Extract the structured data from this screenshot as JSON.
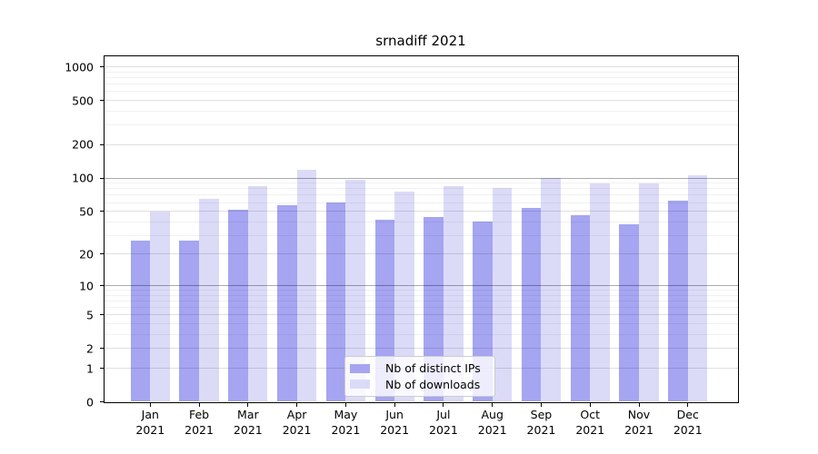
{
  "title": "srnadiff 2021",
  "chart_data": {
    "type": "bar",
    "title": "srnadiff 2021",
    "categories": [
      "Jan",
      "Feb",
      "Mar",
      "Apr",
      "May",
      "Jun",
      "Jul",
      "Aug",
      "Sep",
      "Oct",
      "Nov",
      "Dec"
    ],
    "category_year": "2021",
    "series": [
      {
        "name": "Nb of distinct IPs",
        "color": "#a5a5f2",
        "values": [
          27,
          27,
          52,
          57,
          60,
          42,
          44,
          40,
          54,
          46,
          38,
          62
        ]
      },
      {
        "name": "Nb of downloads",
        "color": "#dbdbf8",
        "values": [
          50,
          65,
          85,
          118,
          96,
          76,
          85,
          81,
          101,
          90,
          90,
          106
        ]
      }
    ],
    "y_scale": "log10(value+1)",
    "y_ticks": [
      0,
      1,
      2,
      5,
      10,
      20,
      50,
      100,
      200,
      500,
      1000
    ],
    "y_minor_ticks": [
      3,
      4,
      6,
      7,
      8,
      9,
      30,
      40,
      60,
      70,
      80,
      90,
      300,
      400,
      600,
      700,
      800,
      900
    ],
    "emphasized_gridlines": [
      10,
      100
    ],
    "ylim": [
      0,
      1300
    ],
    "grid": "horizontal, minor and major, drawn over bars",
    "legend": {
      "position": "lower center",
      "entries": [
        "Nb of distinct IPs",
        "Nb of downloads"
      ]
    }
  },
  "colors": {
    "distinct_ips_bar": "#a5a5f2",
    "downloads_bar": "#dbdbf8",
    "axis": "#000000",
    "background": "#ffffff"
  }
}
